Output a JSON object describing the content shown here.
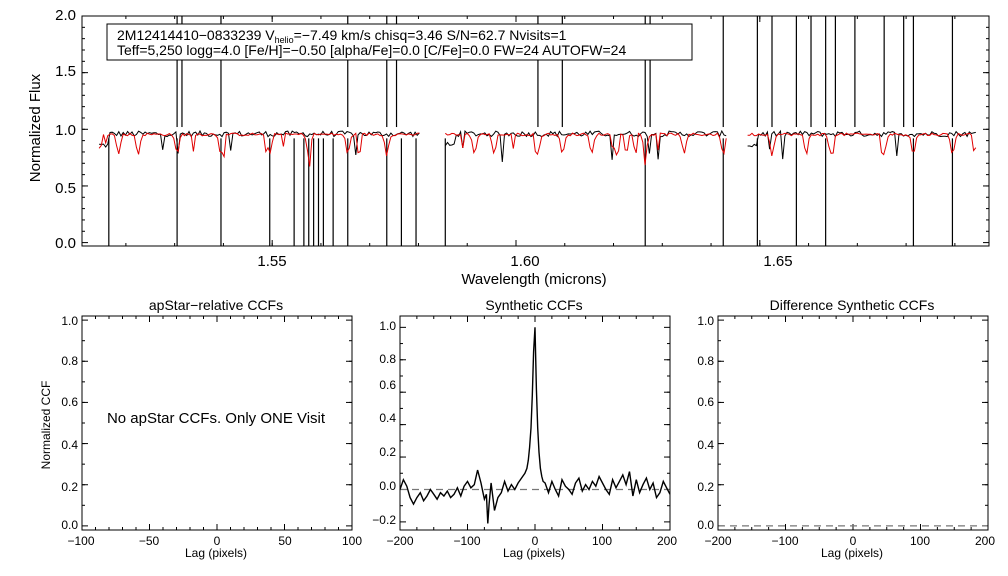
{
  "chart_data": [
    {
      "type": "line",
      "panel": "spectrum",
      "ylabel": "Normalized Flux",
      "xlabel": "Wavelength (microns)",
      "xlim": [
        1.511,
        1.697
      ],
      "ylim": [
        -0.03,
        2.0
      ],
      "x_ticks": [
        "1.55",
        "1.60",
        "1.65"
      ],
      "y_ticks": [
        "0.0",
        "0.5",
        "1.0",
        "1.5",
        "2.0"
      ],
      "annotation": {
        "line1_prefix": "2M12414410−0833239  V",
        "line1_sub": "helio",
        "line1_suffix": "=−7.49 km/s  chisq=3.46  S/N=62.7  Nvisits=1",
        "line2": "Teff=5,250 logg=4.0 [Fe/H]=−0.50 [alpha/Fe]=0.0 [C/Fe]=0.0 FW=24 AUTOFW=24"
      },
      "chip_ranges": [
        [
          1.5145,
          1.5805
        ],
        [
          1.5855,
          1.6435
        ],
        [
          1.6475,
          1.6945
        ]
      ],
      "series": [
        {
          "color": "#000000",
          "continuum": 0.96,
          "noise": 0.025
        },
        {
          "color": "#e00000",
          "continuum": 0.955,
          "noise": 0.012
        }
      ],
      "spikes_up": [
        1.5305,
        1.5315,
        1.5395,
        1.5655,
        1.5735,
        1.5755,
        1.6045,
        1.6095,
        1.6265,
        1.6275,
        1.6425,
        1.6495,
        1.6525,
        1.6575,
        1.6605,
        1.6635,
        1.6655,
        1.6695,
        1.6755,
        1.6795,
        1.6815,
        1.6895
      ],
      "spikes_down": [
        1.5165,
        1.5305,
        1.5395,
        1.5495,
        1.5545,
        1.5565,
        1.5575,
        1.5585,
        1.5595,
        1.5605,
        1.5625,
        1.5655,
        1.5735,
        1.5765,
        1.5795,
        1.5855,
        1.6265,
        1.6425,
        1.6495,
        1.6575,
        1.6635,
        1.6815,
        1.6895
      ],
      "red_absorptions": [
        1.5185,
        1.5225,
        1.5305,
        1.5395,
        1.5495,
        1.5575,
        1.5655,
        1.5735,
        1.5915,
        1.5955,
        1.6045,
        1.6095,
        1.6155,
        1.6205,
        1.6265,
        1.6345,
        1.6425,
        1.6525,
        1.6595,
        1.6645,
        1.6755,
        1.6815,
        1.6895
      ]
    },
    {
      "type": "line",
      "panel": "apstar",
      "title": "apStar−relative CCFs",
      "ylabel": "Normalized CCF",
      "xlabel": "Lag (pixels)",
      "xlim": [
        -100,
        100
      ],
      "ylim": [
        -0.02,
        1.02
      ],
      "x_ticks": [
        "−100",
        "−50",
        "0",
        "50",
        "100"
      ],
      "y_ticks": [
        "0.0",
        "0.2",
        "0.4",
        "0.6",
        "0.8",
        "1.0"
      ],
      "message": "No apStar CCFs.  Only ONE Visit"
    },
    {
      "type": "line",
      "panel": "synthetic",
      "title": "Synthetic CCFs",
      "xlabel": "Lag (pixels)",
      "xlim": [
        -200,
        200
      ],
      "ylim": [
        -0.25,
        1.07
      ],
      "x_ticks": [
        "−200",
        "−100",
        "0",
        "100",
        "200"
      ],
      "y_ticks": [
        "−0.2",
        "0.0",
        "0.2",
        "0.4",
        "0.6",
        "0.8",
        "1.0"
      ],
      "baseline": 0.0,
      "series": [
        {
          "x": [
            -200,
            -195,
            -190,
            -185,
            -180,
            -175,
            -170,
            -165,
            -160,
            -155,
            -150,
            -145,
            -140,
            -135,
            -130,
            -125,
            -120,
            -115,
            -110,
            -105,
            -100,
            -95,
            -90,
            -85,
            -80,
            -77,
            -75,
            -72,
            -70,
            -68,
            -65,
            -62,
            -60,
            -55,
            -50,
            -45,
            -40,
            -35,
            -30,
            -25,
            -20,
            -15,
            -12,
            -10,
            -8,
            -6,
            -4,
            -2,
            0,
            2,
            4,
            6,
            8,
            10,
            12,
            15,
            20,
            25,
            30,
            35,
            40,
            45,
            50,
            55,
            60,
            65,
            70,
            75,
            80,
            85,
            90,
            95,
            100,
            105,
            110,
            115,
            120,
            125,
            130,
            135,
            140,
            145,
            150,
            155,
            160,
            165,
            170,
            175,
            180,
            185,
            190,
            195,
            200
          ],
          "y": [
            0.0,
            0.06,
            0.02,
            -0.05,
            -0.09,
            -0.05,
            -0.02,
            -0.07,
            -0.04,
            0.0,
            -0.03,
            -0.06,
            -0.02,
            -0.04,
            -0.01,
            -0.05,
            -0.03,
            0.01,
            -0.04,
            0.02,
            0.05,
            0.01,
            0.03,
            0.12,
            0.04,
            -0.02,
            -0.06,
            -0.03,
            -0.21,
            -0.09,
            0.04,
            -0.06,
            -0.13,
            -0.05,
            -0.02,
            0.05,
            -0.01,
            0.03,
            0.0,
            0.04,
            0.07,
            0.1,
            0.13,
            0.18,
            0.26,
            0.38,
            0.58,
            0.85,
            1.0,
            0.62,
            0.38,
            0.23,
            0.13,
            0.08,
            0.05,
            0.04,
            -0.02,
            0.05,
            0.0,
            -0.04,
            0.06,
            0.02,
            0.0,
            -0.03,
            0.04,
            0.07,
            -0.01,
            0.03,
            0.0,
            0.05,
            0.02,
            0.08,
            0.04,
            0.0,
            -0.03,
            0.06,
            0.01,
            0.05,
            0.09,
            0.03,
            0.11,
            -0.04,
            0.06,
            -0.02,
            0.03,
            0.07,
            0.0,
            0.04,
            -0.05,
            -0.02,
            0.05,
            0.01,
            -0.03
          ]
        }
      ]
    },
    {
      "type": "line",
      "panel": "difference",
      "title": "Difference Synthetic CCFs",
      "xlabel": "Lag (pixels)",
      "xlim": [
        -200,
        200
      ],
      "ylim": [
        -0.02,
        1.02
      ],
      "x_ticks": [
        "−200",
        "−100",
        "0",
        "100",
        "200"
      ],
      "y_ticks": [
        "0.0",
        "0.2",
        "0.4",
        "0.6",
        "0.8",
        "1.0"
      ],
      "baseline": 0.0
    }
  ]
}
